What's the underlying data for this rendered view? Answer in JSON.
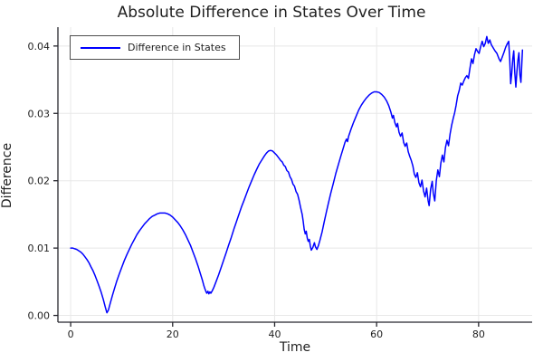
{
  "chart": {
    "title": "Absolute Difference in States Over Time",
    "xlabel": "Time",
    "ylabel": "Difference",
    "legend": {
      "label": "Difference in States"
    }
  },
  "chart_data": {
    "type": "line",
    "title": "Absolute Difference in States Over Time",
    "xlabel": "Time",
    "ylabel": "Difference",
    "xlim": [
      -2.5,
      90.5
    ],
    "ylim": [
      -0.001,
      0.0428
    ],
    "x_ticks": [
      0,
      20,
      40,
      60,
      80
    ],
    "x_tick_labels": [
      "0",
      "20",
      "40",
      "60",
      "80"
    ],
    "y_ticks": [
      0,
      0.01,
      0.02,
      0.03,
      0.04
    ],
    "y_tick_labels": [
      "0.00",
      "0.01",
      "0.02",
      "0.03",
      "0.04"
    ],
    "grid": true,
    "legend_position": "top-left",
    "colors": {
      "line": "#0000ff",
      "grid": "#e8e8e8",
      "axis": "#26262d",
      "text": "#1f1f1f",
      "legend_border": "#4d4d4d",
      "background": "#ffffff"
    },
    "series": [
      {
        "name": "Difference in States",
        "color": "#0000ff",
        "points": [
          [
            0,
            0.01
          ],
          [
            0.4,
            0.01
          ],
          [
            0.8,
            0.0099
          ],
          [
            1.2,
            0.0098
          ],
          [
            1.6,
            0.0096
          ],
          [
            2,
            0.0094
          ],
          [
            2.4,
            0.0091
          ],
          [
            2.8,
            0.0087
          ],
          [
            3.2,
            0.0083
          ],
          [
            3.6,
            0.0078
          ],
          [
            4,
            0.0072
          ],
          [
            4.4,
            0.0066
          ],
          [
            4.8,
            0.0059
          ],
          [
            5.2,
            0.0051
          ],
          [
            5.6,
            0.0043
          ],
          [
            6,
            0.0034
          ],
          [
            6.4,
            0.0024
          ],
          [
            6.8,
            0.0012
          ],
          [
            7.1,
            0.0004
          ],
          [
            7.4,
            0.0008
          ],
          [
            7.8,
            0.0019
          ],
          [
            8.2,
            0.003
          ],
          [
            8.6,
            0.004
          ],
          [
            9,
            0.005
          ],
          [
            9.5,
            0.0061
          ],
          [
            10,
            0.0071
          ],
          [
            10.5,
            0.0081
          ],
          [
            11,
            0.009
          ],
          [
            11.5,
            0.0098
          ],
          [
            12,
            0.0106
          ],
          [
            12.5,
            0.0113
          ],
          [
            13,
            0.012
          ],
          [
            13.5,
            0.0126
          ],
          [
            14,
            0.0131
          ],
          [
            14.5,
            0.0136
          ],
          [
            15,
            0.014
          ],
          [
            15.5,
            0.0144
          ],
          [
            16,
            0.0147
          ],
          [
            16.5,
            0.0149
          ],
          [
            17,
            0.0151
          ],
          [
            17.5,
            0.0152
          ],
          [
            18,
            0.0152
          ],
          [
            18.5,
            0.0152
          ],
          [
            19,
            0.0151
          ],
          [
            19.5,
            0.0149
          ],
          [
            20,
            0.0146
          ],
          [
            20.5,
            0.0142
          ],
          [
            21,
            0.0138
          ],
          [
            21.5,
            0.0133
          ],
          [
            22,
            0.0127
          ],
          [
            22.5,
            0.012
          ],
          [
            23,
            0.0112
          ],
          [
            23.5,
            0.0104
          ],
          [
            24,
            0.0094
          ],
          [
            24.5,
            0.0084
          ],
          [
            25,
            0.0073
          ],
          [
            25.4,
            0.0063
          ],
          [
            25.8,
            0.0053
          ],
          [
            26.1,
            0.0045
          ],
          [
            26.3,
            0.004
          ],
          [
            26.5,
            0.0036
          ],
          [
            26.7,
            0.0033
          ],
          [
            26.9,
            0.0036
          ],
          [
            27.1,
            0.0032
          ],
          [
            27.3,
            0.0035
          ],
          [
            27.5,
            0.0033
          ],
          [
            27.8,
            0.0037
          ],
          [
            28.1,
            0.0042
          ],
          [
            28.5,
            0.005
          ],
          [
            29,
            0.006
          ],
          [
            29.5,
            0.0071
          ],
          [
            30,
            0.0082
          ],
          [
            30.5,
            0.0093
          ],
          [
            31,
            0.0105
          ],
          [
            31.5,
            0.0116
          ],
          [
            32,
            0.0128
          ],
          [
            32.5,
            0.0139
          ],
          [
            33,
            0.015
          ],
          [
            33.5,
            0.0161
          ],
          [
            34,
            0.0171
          ],
          [
            34.5,
            0.0181
          ],
          [
            35,
            0.0191
          ],
          [
            35.5,
            0.02
          ],
          [
            36,
            0.0209
          ],
          [
            36.5,
            0.0217
          ],
          [
            37,
            0.0225
          ],
          [
            37.5,
            0.0231
          ],
          [
            38,
            0.0237
          ],
          [
            38.4,
            0.0241
          ],
          [
            38.8,
            0.0244
          ],
          [
            39.2,
            0.0245
          ],
          [
            39.6,
            0.0244
          ],
          [
            40,
            0.0241
          ],
          [
            40.4,
            0.0238
          ],
          [
            40.8,
            0.0234
          ],
          [
            41.2,
            0.023
          ],
          [
            41.5,
            0.0228
          ],
          [
            41.8,
            0.0223
          ],
          [
            42.1,
            0.0221
          ],
          [
            42.4,
            0.0215
          ],
          [
            42.7,
            0.0213
          ],
          [
            43,
            0.0206
          ],
          [
            43.3,
            0.0202
          ],
          [
            43.6,
            0.0195
          ],
          [
            43.9,
            0.0192
          ],
          [
            44.2,
            0.0184
          ],
          [
            44.5,
            0.018
          ],
          [
            44.8,
            0.0171
          ],
          [
            45.1,
            0.016
          ],
          [
            45.4,
            0.015
          ],
          [
            45.6,
            0.014
          ],
          [
            45.8,
            0.0128
          ],
          [
            46,
            0.0121
          ],
          [
            46.2,
            0.0125
          ],
          [
            46.4,
            0.0115
          ],
          [
            46.6,
            0.011
          ],
          [
            46.8,
            0.0113
          ],
          [
            47,
            0.0103
          ],
          [
            47.2,
            0.0097
          ],
          [
            47.5,
            0.0101
          ],
          [
            47.8,
            0.0108
          ],
          [
            48,
            0.0102
          ],
          [
            48.3,
            0.0098
          ],
          [
            48.6,
            0.0104
          ],
          [
            48.9,
            0.0112
          ],
          [
            49.3,
            0.0124
          ],
          [
            49.7,
            0.0138
          ],
          [
            50.1,
            0.0152
          ],
          [
            50.5,
            0.0165
          ],
          [
            51,
            0.0181
          ],
          [
            51.5,
            0.0196
          ],
          [
            52,
            0.0211
          ],
          [
            52.5,
            0.0224
          ],
          [
            53,
            0.0237
          ],
          [
            53.4,
            0.0247
          ],
          [
            53.8,
            0.0257
          ],
          [
            54.1,
            0.0262
          ],
          [
            54.3,
            0.0258
          ],
          [
            54.5,
            0.0266
          ],
          [
            55,
            0.0277
          ],
          [
            55.5,
            0.0287
          ],
          [
            56,
            0.0296
          ],
          [
            56.5,
            0.0305
          ],
          [
            57,
            0.0312
          ],
          [
            57.5,
            0.0318
          ],
          [
            58,
            0.0323
          ],
          [
            58.5,
            0.0327
          ],
          [
            59,
            0.033
          ],
          [
            59.5,
            0.0332
          ],
          [
            60,
            0.0332
          ],
          [
            60.5,
            0.0331
          ],
          [
            61,
            0.0328
          ],
          [
            61.5,
            0.0324
          ],
          [
            62,
            0.0318
          ],
          [
            62.4,
            0.0311
          ],
          [
            62.8,
            0.0302
          ],
          [
            63.1,
            0.0293
          ],
          [
            63.3,
            0.0297
          ],
          [
            63.6,
            0.0286
          ],
          [
            63.9,
            0.028
          ],
          [
            64.1,
            0.0285
          ],
          [
            64.4,
            0.0272
          ],
          [
            64.7,
            0.0266
          ],
          [
            65,
            0.0271
          ],
          [
            65.3,
            0.0257
          ],
          [
            65.6,
            0.0251
          ],
          [
            65.9,
            0.0256
          ],
          [
            66.2,
            0.0243
          ],
          [
            66.5,
            0.0236
          ],
          [
            66.8,
            0.023
          ],
          [
            67.1,
            0.0222
          ],
          [
            67.4,
            0.021
          ],
          [
            67.7,
            0.0205
          ],
          [
            68,
            0.0212
          ],
          [
            68.3,
            0.0197
          ],
          [
            68.6,
            0.0191
          ],
          [
            68.9,
            0.0201
          ],
          [
            69.2,
            0.0185
          ],
          [
            69.5,
            0.0176
          ],
          [
            69.8,
            0.0189
          ],
          [
            70.1,
            0.017
          ],
          [
            70.3,
            0.0163
          ],
          [
            70.6,
            0.0188
          ],
          [
            70.9,
            0.0199
          ],
          [
            71.1,
            0.0182
          ],
          [
            71.4,
            0.017
          ],
          [
            71.7,
            0.02
          ],
          [
            72,
            0.0216
          ],
          [
            72.3,
            0.0206
          ],
          [
            72.6,
            0.0226
          ],
          [
            72.9,
            0.0238
          ],
          [
            73.2,
            0.0228
          ],
          [
            73.5,
            0.0249
          ],
          [
            73.8,
            0.026
          ],
          [
            74.1,
            0.0252
          ],
          [
            74.4,
            0.0269
          ],
          [
            74.7,
            0.0282
          ],
          [
            75,
            0.0292
          ],
          [
            75.3,
            0.0301
          ],
          [
            75.6,
            0.0312
          ],
          [
            75.9,
            0.0326
          ],
          [
            76.2,
            0.0334
          ],
          [
            76.5,
            0.0345
          ],
          [
            76.8,
            0.0342
          ],
          [
            77.1,
            0.0348
          ],
          [
            77.4,
            0.0353
          ],
          [
            77.7,
            0.0356
          ],
          [
            78,
            0.0352
          ],
          [
            78.3,
            0.0367
          ],
          [
            78.6,
            0.0381
          ],
          [
            78.9,
            0.0374
          ],
          [
            79.2,
            0.0387
          ],
          [
            79.5,
            0.0396
          ],
          [
            79.8,
            0.0392
          ],
          [
            80.1,
            0.0389
          ],
          [
            80.4,
            0.0399
          ],
          [
            80.7,
            0.0407
          ],
          [
            81,
            0.0399
          ],
          [
            81.3,
            0.0404
          ],
          [
            81.6,
            0.0414
          ],
          [
            81.9,
            0.0404
          ],
          [
            82.2,
            0.0409
          ],
          [
            82.5,
            0.0402
          ],
          [
            82.8,
            0.0398
          ],
          [
            83.2,
            0.0393
          ],
          [
            83.6,
            0.0389
          ],
          [
            84,
            0.0381
          ],
          [
            84.3,
            0.0377
          ],
          [
            84.6,
            0.0383
          ],
          [
            85,
            0.0391
          ],
          [
            85.3,
            0.0398
          ],
          [
            85.6,
            0.0403
          ],
          [
            85.9,
            0.0407
          ],
          [
            86.1,
            0.0381
          ],
          [
            86.3,
            0.0344
          ],
          [
            86.5,
            0.036
          ],
          [
            86.7,
            0.0381
          ],
          [
            86.9,
            0.0393
          ],
          [
            87.1,
            0.0361
          ],
          [
            87.3,
            0.0339
          ],
          [
            87.5,
            0.0361
          ],
          [
            87.7,
            0.0378
          ],
          [
            87.9,
            0.039
          ],
          [
            88.1,
            0.0357
          ],
          [
            88.3,
            0.0346
          ],
          [
            88.6,
            0.0394
          ]
        ]
      }
    ]
  }
}
